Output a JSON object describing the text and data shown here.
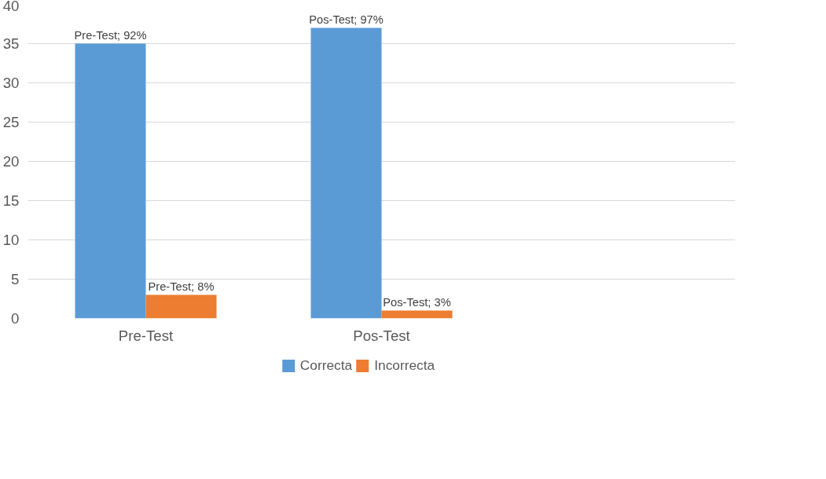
{
  "chart_data": {
    "type": "bar",
    "categories": [
      "Pre-Test",
      "Pos-Test",
      null
    ],
    "series": [
      {
        "name": "Correcta",
        "color": "#5b9bd5",
        "values": [
          35,
          37,
          null
        ]
      },
      {
        "name": "Incorrecta",
        "color": "#ed7d31",
        "values": [
          3,
          1,
          null
        ]
      }
    ],
    "annotations": [
      {
        "text": "Pre-Test; 92%",
        "x": "Pre-Test",
        "y": 35
      },
      {
        "text": "Pos-Test; 97%",
        "x": "Pos-Test",
        "y": 37
      },
      {
        "text": "Pre-Test; 8%",
        "x": "Pre-Test",
        "y": 3
      },
      {
        "text": "Pos-Test; 3%",
        "x": "Pos-Test",
        "y": 1
      }
    ],
    "ylim": [
      0,
      40
    ],
    "yticks": [
      0,
      5,
      10,
      15,
      20,
      25,
      30,
      35,
      40
    ],
    "grid": "y",
    "legend": "bottom"
  }
}
